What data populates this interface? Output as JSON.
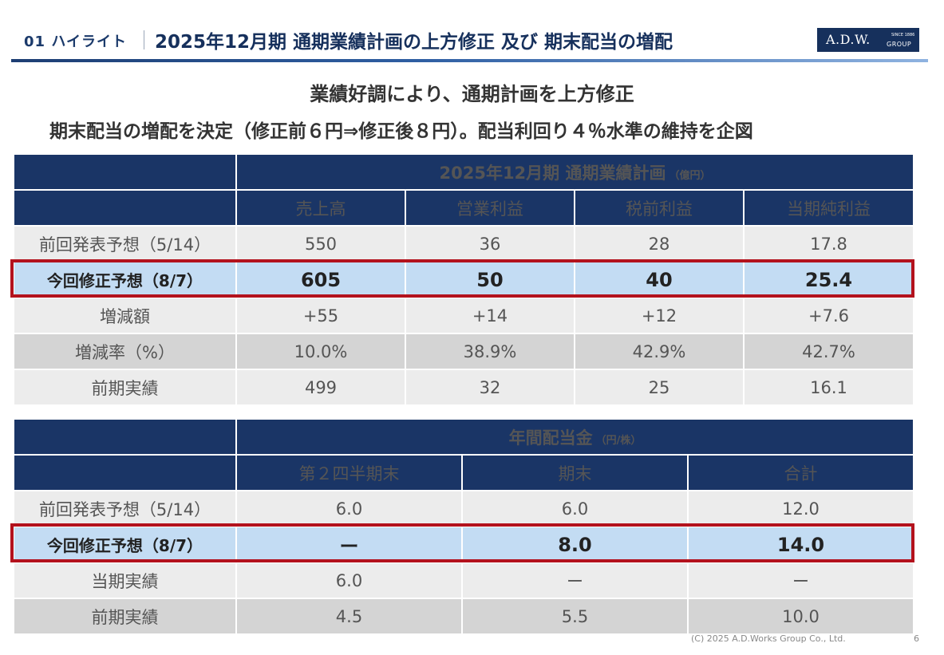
{
  "header": {
    "section": "01 ハイライト",
    "title": "2025年12月期 通期業績計画の上方修正 及び 期末配当の増配",
    "logo_main": "A.D.W.",
    "logo_since": "SINCE 1886",
    "logo_group": "GROUP"
  },
  "headline": {
    "line1": "業績好調により、通期計画を上方修正",
    "line2": "期末配当の増配を決定（修正前６円⇒修正後８円）。配当利回り４％水準の維持を企図"
  },
  "earnings_table": {
    "title": "2025年12月期 通期業績計画",
    "unit": "（億円）",
    "columns": [
      "売上高",
      "営業利益",
      "税前利益",
      "当期純利益"
    ],
    "rows": [
      {
        "label": "前回発表予想（5/14）",
        "values": [
          "550",
          "36",
          "28",
          "17.8"
        ]
      },
      {
        "label": "今回修正予想（8/7）",
        "values": [
          "605",
          "50",
          "40",
          "25.4"
        ]
      },
      {
        "label": "増減額",
        "values": [
          "+55",
          "+14",
          "+12",
          "+7.6"
        ]
      },
      {
        "label": "増減率（%）",
        "values": [
          "10.0%",
          "38.9%",
          "42.9%",
          "42.7%"
        ]
      },
      {
        "label": "前期実績",
        "values": [
          "499",
          "32",
          "25",
          "16.1"
        ]
      }
    ]
  },
  "dividend_table": {
    "title": "年間配当金",
    "unit": "（円/株）",
    "columns": [
      "第２四半期末",
      "期末",
      "合計"
    ],
    "rows": [
      {
        "label": "前回発表予想（5/14）",
        "values": [
          "6.0",
          "6.0",
          "12.0"
        ]
      },
      {
        "label": "今回修正予想（8/7）",
        "values": [
          "ー",
          "8.0",
          "14.0"
        ]
      },
      {
        "label": "当期実績",
        "values": [
          "6.0",
          "ー",
          "ー"
        ]
      },
      {
        "label": "前期実績",
        "values": [
          "4.5",
          "5.5",
          "10.0"
        ]
      }
    ]
  },
  "footer": {
    "copyright": "(C) 2025  A.D.Works Group Co., Ltd.",
    "page": "6"
  },
  "colors": {
    "navy": "#1a3566",
    "highlight_row": "#c3dcf3",
    "highlight_border": "#b3121d",
    "row_light": "#ececec",
    "row_dark": "#d4d4d4"
  }
}
